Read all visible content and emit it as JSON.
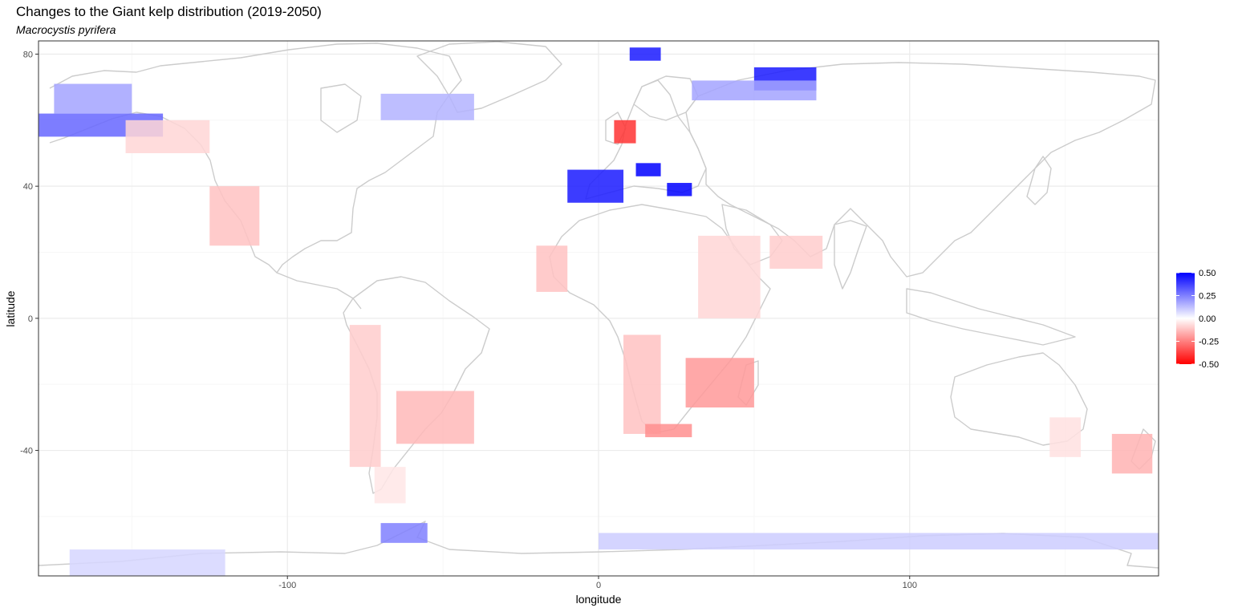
{
  "chart_data": {
    "type": "map",
    "title": "Changes to the Giant kelp distribution (2019-2050)",
    "subtitle": "Macrocystis pyrifera",
    "xlabel": "longitude",
    "ylabel": "latitude",
    "xlim": [
      -180,
      180
    ],
    "ylim": [
      -78,
      84
    ],
    "x_ticks": [
      -100,
      0,
      100
    ],
    "y_ticks": [
      -40,
      0,
      40,
      80
    ],
    "x_minor": [
      -150,
      -50,
      50,
      150
    ],
    "y_minor": [
      -60,
      -20,
      20,
      60
    ],
    "grid": true,
    "legend": {
      "placement": "right",
      "breaks": [
        0.5,
        0.25,
        0.0,
        -0.25,
        -0.5
      ],
      "labels": [
        "0.50",
        "0.25",
        "0.00",
        "-0.25",
        "-0.50"
      ],
      "low_color": "#ff0000",
      "mid_color": "#ffffff",
      "high_color": "#0000ff",
      "limits": [
        -0.5,
        0.5
      ]
    },
    "colors": {
      "land_border": "#cccccc",
      "grid_major": "#ebebeb",
      "grid_minor": "#f5f5f5",
      "panel_border": "#333333"
    },
    "regions": [
      {
        "lon": [
          -180,
          -140
        ],
        "lat": [
          55,
          62
        ],
        "value": 0.3
      },
      {
        "lon": [
          -175,
          -150
        ],
        "lat": [
          62,
          71
        ],
        "value": 0.18
      },
      {
        "lon": [
          -152,
          -125
        ],
        "lat": [
          50,
          60
        ],
        "value": -0.08
      },
      {
        "lon": [
          -125,
          -109
        ],
        "lat": [
          22,
          40
        ],
        "value": -0.12
      },
      {
        "lon": [
          -80,
          -70
        ],
        "lat": [
          -45,
          -2
        ],
        "value": -0.1
      },
      {
        "lon": [
          -65,
          -40
        ],
        "lat": [
          -38,
          -22
        ],
        "value": -0.14
      },
      {
        "lon": [
          -72,
          -62
        ],
        "lat": [
          -56,
          -45
        ],
        "value": -0.05
      },
      {
        "lon": [
          -20,
          -10
        ],
        "lat": [
          8,
          22
        ],
        "value": -0.12
      },
      {
        "lon": [
          8,
          20
        ],
        "lat": [
          -35,
          -5
        ],
        "value": -0.12
      },
      {
        "lon": [
          15,
          30
        ],
        "lat": [
          -36,
          -32
        ],
        "value": -0.22
      },
      {
        "lon": [
          28,
          50
        ],
        "lat": [
          -27,
          -12
        ],
        "value": -0.2
      },
      {
        "lon": [
          32,
          52
        ],
        "lat": [
          0,
          25
        ],
        "value": -0.08
      },
      {
        "lon": [
          55,
          72
        ],
        "lat": [
          15,
          25
        ],
        "value": -0.1
      },
      {
        "lon": [
          5,
          12
        ],
        "lat": [
          53,
          60
        ],
        "value": -0.4
      },
      {
        "lon": [
          -10,
          8
        ],
        "lat": [
          35,
          45
        ],
        "value": 0.45
      },
      {
        "lon": [
          12,
          20
        ],
        "lat": [
          43,
          47
        ],
        "value": 0.5
      },
      {
        "lon": [
          22,
          30
        ],
        "lat": [
          37,
          41
        ],
        "value": 0.5
      },
      {
        "lon": [
          10,
          20
        ],
        "lat": [
          78,
          82
        ],
        "value": 0.45
      },
      {
        "lon": [
          50,
          70
        ],
        "lat": [
          69,
          76
        ],
        "value": 0.45
      },
      {
        "lon": [
          30,
          70
        ],
        "lat": [
          66,
          72
        ],
        "value": 0.18
      },
      {
        "lon": [
          -70,
          -40
        ],
        "lat": [
          60,
          68
        ],
        "value": 0.15
      },
      {
        "lon": [
          -170,
          -120
        ],
        "lat": [
          -78,
          -70
        ],
        "value": 0.08
      },
      {
        "lon": [
          -70,
          -55
        ],
        "lat": [
          -68,
          -62
        ],
        "value": 0.25
      },
      {
        "lon": [
          0,
          180
        ],
        "lat": [
          -70,
          -65
        ],
        "value": 0.1
      },
      {
        "lon": [
          165,
          178
        ],
        "lat": [
          -47,
          -35
        ],
        "value": -0.15
      },
      {
        "lon": [
          145,
          155
        ],
        "lat": [
          -42,
          -30
        ],
        "value": -0.06
      }
    ]
  }
}
